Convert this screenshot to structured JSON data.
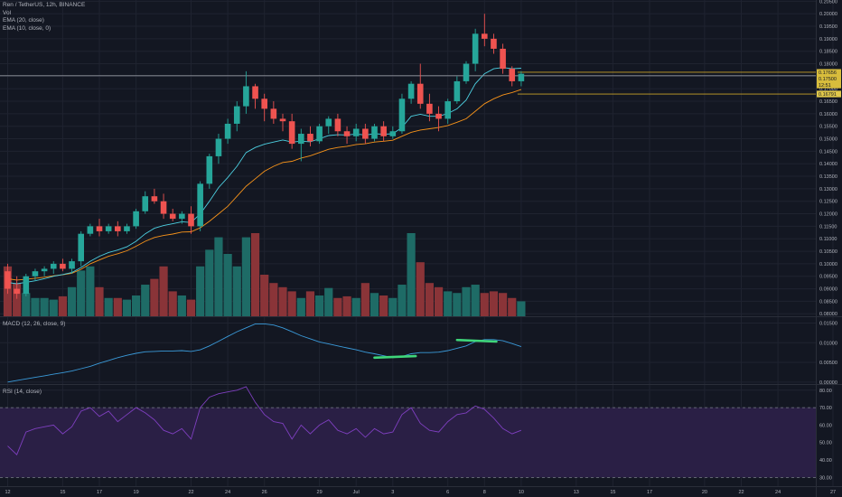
{
  "legend": {
    "symbol": "Ren / TetherUS, 12h, BINANCE",
    "vol": "Vol",
    "ema20": "EMA (20, close)",
    "ema10": "EMA (10, close, 0)",
    "macd": "MACD (12, 26, close, 9)",
    "rsi": "RSI (14, close)"
  },
  "colors": {
    "background": "#131722",
    "grid": "#1f2330",
    "up": "#26a69a",
    "down": "#ef5350",
    "vol_up": "#1e6b66",
    "vol_down": "#8a3438",
    "ema20": "#f7931a",
    "ema10": "#4dd0e1",
    "macd_line": "#3a9ad9",
    "rsi_line": "#7e3fbf",
    "rsi_band": "#2a1f45",
    "hline": "#c9a227",
    "hline_gray": "#9598a1",
    "annot": "#3fd67a"
  },
  "chart_data": {
    "type": "candlestick",
    "x_ticks": [
      "12",
      "15",
      "17",
      "19",
      "22",
      "24",
      "26",
      "29",
      "Jul",
      "3",
      "6",
      "8",
      "10",
      "13",
      "15",
      "17",
      "20",
      "22",
      "24",
      "27"
    ],
    "x_tick_candle_index": [
      0,
      6,
      10,
      14,
      20,
      24,
      28,
      34,
      38,
      42,
      48,
      52,
      56,
      62,
      66,
      70,
      76,
      80,
      84,
      90
    ],
    "price_axis": {
      "range": [
        0.079,
        0.2055
      ],
      "ticks": [
        "0.20500",
        "0.20000",
        "0.19500",
        "0.19000",
        "0.18500",
        "0.18000",
        "0.17500",
        "0.17000",
        "0.16500",
        "0.16000",
        "0.15500",
        "0.15000",
        "0.14500",
        "0.14000",
        "0.13500",
        "0.13000",
        "0.12500",
        "0.12000",
        "0.11500",
        "0.11000",
        "0.10500",
        "0.10000",
        "0.09500",
        "0.09000",
        "0.08500",
        "0.08000"
      ]
    },
    "price_tags": [
      {
        "label": "0.17656",
        "value": 0.17656
      },
      {
        "label": "0.17500",
        "value": 0.175
      },
      {
        "label": "12:51",
        "value": 0.1733
      },
      {
        "label": "0.16791",
        "value": 0.16791
      }
    ],
    "horizontal_lines": [
      {
        "value": 0.1766,
        "color": "hline",
        "start_index": 56
      },
      {
        "value": 0.1679,
        "color": "hline",
        "start_index": 56
      },
      {
        "value": 0.1752,
        "color": "hline_gray",
        "start_index": 0
      }
    ],
    "candles": [
      [
        0.097,
        0.1,
        0.088,
        0.09
      ],
      [
        0.09,
        0.095,
        0.086,
        0.088
      ],
      [
        0.088,
        0.096,
        0.087,
        0.095
      ],
      [
        0.095,
        0.098,
        0.093,
        0.097
      ],
      [
        0.097,
        0.099,
        0.095,
        0.098
      ],
      [
        0.098,
        0.101,
        0.096,
        0.1
      ],
      [
        0.1,
        0.102,
        0.097,
        0.098
      ],
      [
        0.098,
        0.102,
        0.096,
        0.101
      ],
      [
        0.101,
        0.113,
        0.099,
        0.112
      ],
      [
        0.112,
        0.116,
        0.111,
        0.115
      ],
      [
        0.115,
        0.118,
        0.111,
        0.113
      ],
      [
        0.113,
        0.116,
        0.112,
        0.115
      ],
      [
        0.115,
        0.117,
        0.111,
        0.113
      ],
      [
        0.113,
        0.116,
        0.112,
        0.115
      ],
      [
        0.115,
        0.122,
        0.114,
        0.121
      ],
      [
        0.121,
        0.129,
        0.12,
        0.127
      ],
      [
        0.127,
        0.13,
        0.124,
        0.125
      ],
      [
        0.125,
        0.128,
        0.118,
        0.12
      ],
      [
        0.12,
        0.122,
        0.117,
        0.118
      ],
      [
        0.118,
        0.121,
        0.116,
        0.12
      ],
      [
        0.12,
        0.123,
        0.112,
        0.115
      ],
      [
        0.115,
        0.133,
        0.113,
        0.132
      ],
      [
        0.132,
        0.144,
        0.13,
        0.143
      ],
      [
        0.143,
        0.152,
        0.14,
        0.15
      ],
      [
        0.15,
        0.158,
        0.148,
        0.156
      ],
      [
        0.156,
        0.165,
        0.153,
        0.163
      ],
      [
        0.163,
        0.177,
        0.16,
        0.171
      ],
      [
        0.171,
        0.172,
        0.162,
        0.166
      ],
      [
        0.166,
        0.168,
        0.157,
        0.162
      ],
      [
        0.162,
        0.165,
        0.156,
        0.158
      ],
      [
        0.158,
        0.16,
        0.153,
        0.157
      ],
      [
        0.157,
        0.16,
        0.146,
        0.148
      ],
      [
        0.148,
        0.154,
        0.141,
        0.152
      ],
      [
        0.152,
        0.155,
        0.147,
        0.149
      ],
      [
        0.149,
        0.156,
        0.148,
        0.155
      ],
      [
        0.155,
        0.159,
        0.152,
        0.158
      ],
      [
        0.158,
        0.16,
        0.151,
        0.153
      ],
      [
        0.153,
        0.155,
        0.148,
        0.151
      ],
      [
        0.151,
        0.156,
        0.149,
        0.154
      ],
      [
        0.154,
        0.156,
        0.148,
        0.15
      ],
      [
        0.15,
        0.156,
        0.149,
        0.155
      ],
      [
        0.155,
        0.157,
        0.149,
        0.151
      ],
      [
        0.151,
        0.155,
        0.15,
        0.153
      ],
      [
        0.153,
        0.168,
        0.152,
        0.166
      ],
      [
        0.166,
        0.173,
        0.164,
        0.172
      ],
      [
        0.172,
        0.18,
        0.162,
        0.164
      ],
      [
        0.164,
        0.168,
        0.157,
        0.16
      ],
      [
        0.16,
        0.163,
        0.153,
        0.158
      ],
      [
        0.158,
        0.166,
        0.156,
        0.165
      ],
      [
        0.165,
        0.175,
        0.164,
        0.173
      ],
      [
        0.173,
        0.181,
        0.172,
        0.18
      ],
      [
        0.18,
        0.194,
        0.177,
        0.192
      ],
      [
        0.192,
        0.2,
        0.187,
        0.19
      ],
      [
        0.19,
        0.192,
        0.184,
        0.186
      ],
      [
        0.186,
        0.188,
        0.176,
        0.178
      ],
      [
        0.178,
        0.179,
        0.171,
        0.173
      ],
      [
        0.173,
        0.177,
        0.171,
        0.176
      ]
    ],
    "ema20": [
      0.094,
      0.0935,
      0.0938,
      0.0942,
      0.0946,
      0.0952,
      0.0956,
      0.0962,
      0.0978,
      0.1,
      0.1015,
      0.103,
      0.104,
      0.1052,
      0.107,
      0.109,
      0.1105,
      0.1113,
      0.1119,
      0.1127,
      0.1128,
      0.1144,
      0.117,
      0.12,
      0.123,
      0.127,
      0.131,
      0.134,
      0.137,
      0.139,
      0.1405,
      0.141,
      0.1423,
      0.1432,
      0.1445,
      0.1458,
      0.1465,
      0.147,
      0.1477,
      0.148,
      0.1487,
      0.149,
      0.1494,
      0.151,
      0.1526,
      0.1535,
      0.154,
      0.1545,
      0.1553,
      0.1566,
      0.158,
      0.161,
      0.164,
      0.166,
      0.1675,
      0.1685,
      0.1697
    ],
    "ema10": [
      0.0925,
      0.092,
      0.0926,
      0.0932,
      0.094,
      0.095,
      0.0957,
      0.0965,
      0.0985,
      0.101,
      0.103,
      0.1045,
      0.1055,
      0.1068,
      0.109,
      0.112,
      0.1142,
      0.1153,
      0.116,
      0.1168,
      0.1165,
      0.12,
      0.125,
      0.1305,
      0.1345,
      0.139,
      0.1445,
      0.1465,
      0.1478,
      0.1487,
      0.1495,
      0.1487,
      0.149,
      0.1488,
      0.15,
      0.1513,
      0.1516,
      0.1515,
      0.1519,
      0.1515,
      0.152,
      0.1518,
      0.152,
      0.1545,
      0.159,
      0.1598,
      0.159,
      0.159,
      0.1601,
      0.162,
      0.1655,
      0.172,
      0.176,
      0.178,
      0.1785,
      0.178,
      0.1782
    ],
    "volume_axis_max": 100,
    "volume": [
      60,
      40,
      28,
      22,
      22,
      20,
      24,
      35,
      55,
      60,
      35,
      22,
      22,
      20,
      25,
      38,
      45,
      60,
      30,
      25,
      20,
      60,
      80,
      95,
      75,
      60,
      95,
      100,
      50,
      40,
      35,
      30,
      22,
      30,
      25,
      34,
      22,
      24,
      22,
      40,
      28,
      25,
      22,
      38,
      100,
      65,
      40,
      35,
      30,
      28,
      35,
      38,
      28,
      30,
      28,
      22,
      18
    ],
    "macd_axis": {
      "range": [
        -0.0005,
        0.0165
      ],
      "ticks": [
        "0.01500",
        "0.01000",
        "0.00500",
        "0.00000"
      ]
    },
    "macd": [
      0.0,
      0.0004,
      0.0008,
      0.0012,
      0.0016,
      0.002,
      0.0024,
      0.0028,
      0.0034,
      0.004,
      0.0048,
      0.0055,
      0.0062,
      0.0068,
      0.0073,
      0.0077,
      0.0078,
      0.0079,
      0.0079,
      0.008,
      0.0078,
      0.0082,
      0.0092,
      0.0104,
      0.0116,
      0.0128,
      0.0138,
      0.0148,
      0.0148,
      0.0145,
      0.0138,
      0.0128,
      0.0118,
      0.011,
      0.0102,
      0.0097,
      0.0092,
      0.0087,
      0.0082,
      0.0076,
      0.0072,
      0.0067,
      0.0062,
      0.0065,
      0.0072,
      0.0075,
      0.0075,
      0.0076,
      0.008,
      0.0086,
      0.0092,
      0.0103,
      0.0108,
      0.0108,
      0.0105,
      0.0098,
      0.009
    ],
    "macd_annotations": [
      {
        "x0": 40,
        "x1": 44.5,
        "y0": 0.0062,
        "y1": 0.0066
      },
      {
        "x0": 49,
        "x1": 53.3,
        "y0": 0.0107,
        "y1": 0.0103
      }
    ],
    "rsi_axis": {
      "range": [
        25,
        83
      ],
      "ticks": [
        "80.00",
        "70.00",
        "60.00",
        "50.00",
        "40.00",
        "30.00"
      ],
      "band": [
        30,
        70
      ]
    },
    "rsi": [
      48,
      43,
      56,
      58,
      59,
      60,
      55,
      59,
      68,
      70,
      65,
      68,
      62,
      66,
      70,
      67,
      63,
      57,
      55,
      58,
      52,
      70,
      76,
      78,
      79,
      80,
      82,
      73,
      66,
      62,
      61,
      52,
      60,
      55,
      60,
      63,
      57,
      55,
      58,
      53,
      58,
      55,
      56,
      66,
      70,
      61,
      57,
      56,
      62,
      66,
      67,
      71,
      69,
      64,
      58,
      55,
      57
    ]
  }
}
